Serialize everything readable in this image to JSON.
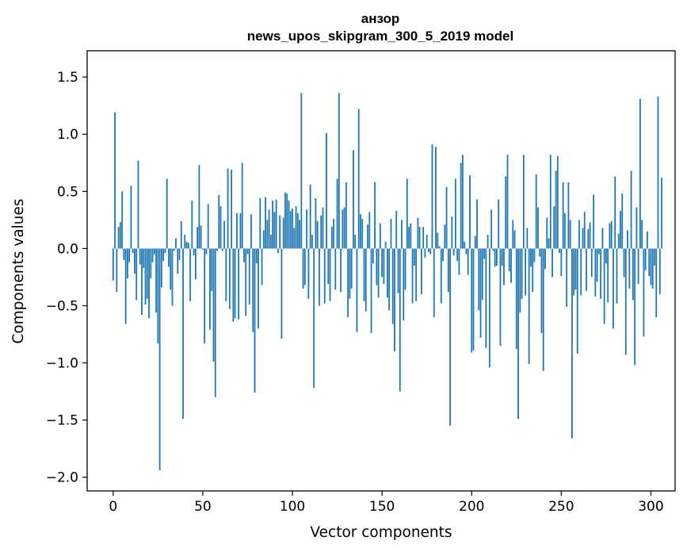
{
  "chart_data": {
    "type": "bar",
    "title": "анзор",
    "subtitle": "news_upos_skipgram_300_5_2019 model",
    "xlabel": "Vector components",
    "ylabel": "Components values",
    "xlim": [
      -14.5,
      313.5
    ],
    "ylim": [
      -2.12,
      1.73
    ],
    "x_ticks": [
      0,
      50,
      100,
      150,
      200,
      250,
      300
    ],
    "x_tick_labels": [
      "0",
      "50",
      "100",
      "150",
      "200",
      "250",
      "300"
    ],
    "y_ticks": [
      1.5,
      1.0,
      0.5,
      0.0,
      -0.5,
      -1.0,
      -1.5,
      -2.0
    ],
    "y_tick_labels": [
      "1.5",
      "1.0",
      "0.5",
      "0.0",
      "−0.5",
      "−1.0",
      "−1.5",
      "−2.0"
    ],
    "bar_color": "#1f77b4",
    "grid": false,
    "legend": null,
    "values": [
      -0.28,
      1.19,
      -0.38,
      0.19,
      0.23,
      0.5,
      -0.1,
      -0.66,
      -0.26,
      -0.12,
      0.55,
      -0.04,
      -0.22,
      -0.45,
      0.77,
      -0.14,
      -0.58,
      -0.17,
      -0.49,
      -0.44,
      -0.61,
      -0.26,
      -0.12,
      -0.05,
      -0.56,
      -0.83,
      -1.94,
      -0.34,
      -0.11,
      -0.04,
      0.61,
      -0.16,
      -0.36,
      -0.5,
      -0.02,
      0.09,
      -0.22,
      -0.1,
      0.24,
      -1.49,
      0.12,
      0.06,
      0.05,
      -0.46,
      0.42,
      -0.06,
      -0.27,
      0.19,
      0.73,
      0.2,
      -0.01,
      -0.83,
      -0.05,
      0.39,
      -0.71,
      -0.37,
      -0.99,
      -1.3,
      -0.02,
      0.47,
      0.37,
      -0.02,
      0.24,
      -0.46,
      0.7,
      -0.53,
      0.69,
      -0.64,
      -0.61,
      0.31,
      -0.62,
      0.31,
      0.75,
      -0.12,
      -0.59,
      -0.05,
      -0.49,
      0.3,
      -0.73,
      -1.26,
      -0.13,
      -0.7,
      0.44,
      -0.32,
      0.16,
      0.45,
      0.25,
      0.34,
      0.12,
      0.42,
      0.32,
      0.43,
      -0.04,
      0.29,
      -0.79,
      0.27,
      0.49,
      0.48,
      0.42,
      0.33,
      0.35,
      0.18,
      0.37,
      0.31,
      0.25,
      1.36,
      -0.35,
      -0.32,
      0.34,
      -0.44,
      0.56,
      0.12,
      -1.22,
      0.44,
      0.24,
      -0.5,
      0.29,
      0.36,
      -0.48,
      1.01,
      -0.31,
      -0.46,
      0.19,
      0.26,
      -0.36,
      0.61,
      1.36,
      -0.38,
      0.34,
      0.36,
      0.58,
      -0.6,
      -0.44,
      -0.35,
      0.86,
      0.12,
      -0.73,
      1.22,
      0.3,
      0.26,
      -0.46,
      -0.55,
      0.21,
      0.32,
      -0.74,
      -0.13,
      0.58,
      -0.32,
      -0.43,
      0.22,
      -0.25,
      -0.31,
      0.06,
      -0.43,
      -0.54,
      0.26,
      -0.66,
      -0.9,
      0.33,
      -0.39,
      -1.25,
      0.25,
      -0.63,
      -0.36,
      0.61,
      0.19,
      0.22,
      -0.48,
      -0.15,
      -0.46,
      0.27,
      0.19,
      -0.4,
      0.19,
      -0.08,
      0.12,
      -0.03,
      -0.05,
      0.91,
      -0.6,
      0.89,
      0.14,
      0.02,
      -0.48,
      -0.11,
      0.21,
      0.54,
      -0.38,
      -1.55,
      0.28,
      -0.06,
      0.61,
      -0.11,
      -0.23,
      0.75,
      0.82,
      0.06,
      -0.05,
      -0.23,
      0.64,
      -0.91,
      -0.89,
      0.11,
      0.43,
      -0.54,
      -0.78,
      -0.45,
      -0.09,
      -0.87,
      0.12,
      -1.04,
      0.34,
      -0.02,
      -0.16,
      -0.15,
      0.43,
      -0.85,
      -0.15,
      -0.32,
      0.63,
      0.82,
      -0.2,
      -0.3,
      0.25,
      0.16,
      -0.88,
      -1.49,
      -0.56,
      -0.44,
      0.82,
      -0.41,
      0.18,
      -1.01,
      -0.16,
      -0.38,
      -0.12,
      0.65,
      0.36,
      -0.07,
      -0.74,
      -1.07,
      -0.18,
      0.27,
      0.09,
      0.82,
      -0.25,
      0.37,
      0.68,
      0.81,
      -0.04,
      -0.24,
      0.58,
      0.31,
      -0.51,
      0.58,
      0.25,
      -1.66,
      -0.41,
      -0.36,
      -0.92,
      0.25,
      -0.41,
      0.18,
      0.32,
      -0.37,
      0.17,
      0.23,
      -0.25,
      0.47,
      -0.42,
      -0.29,
      -0.05,
      -0.44,
      0.18,
      -0.66,
      -0.13,
      -0.47,
      0.22,
      0.24,
      -0.7,
      0.63,
      -0.48,
      0.13,
      0.33,
      0.48,
      -0.25,
      -0.93,
      0.16,
      -0.35,
      0.68,
      -0.45,
      -1.02,
      0.36,
      -0.31,
      1.31,
      0.25,
      -0.77,
      -0.19,
      0.15,
      -0.24,
      -0.32,
      -0.35,
      -0.15,
      -0.6,
      1.33,
      -0.4,
      0.62
    ]
  }
}
